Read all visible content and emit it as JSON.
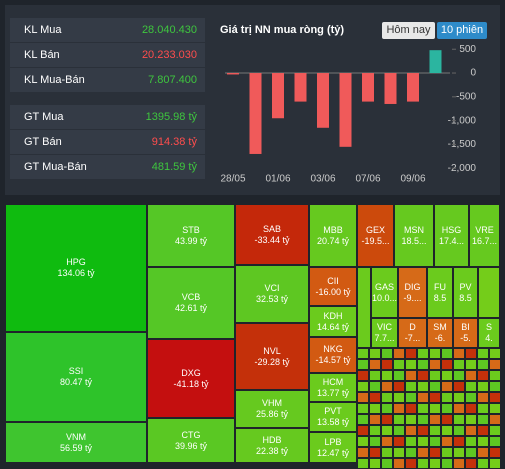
{
  "stats": [
    {
      "label": "KL Mua",
      "value": "28.040.430",
      "color": "#3ec53e"
    },
    {
      "label": "KL Bán",
      "value": "20.233.030",
      "color": "#ff4d4d"
    },
    {
      "label": "KL Mua-Bán",
      "value": "7.807.400",
      "color": "#3ec53e"
    },
    {
      "label": "GT Mua",
      "value": "1395.98 tỷ",
      "color": "#3ec53e"
    },
    {
      "label": "GT Bán",
      "value": "914.38 tỷ",
      "color": "#ff4d4d"
    },
    {
      "label": "GT Mua-Bán",
      "value": "481.59 tỷ",
      "color": "#3ec53e"
    }
  ],
  "chart": {
    "type": "bar",
    "title": "Giá trị NN mua ròng (tỷ)",
    "buttons": [
      "Hôm nay",
      "10 phiên"
    ],
    "categories": [
      "28/05",
      null,
      "01/06",
      null,
      "03/06",
      null,
      "07/06",
      null,
      "09/06",
      null
    ],
    "values": [
      -30,
      -1700,
      -950,
      -600,
      -1150,
      -1550,
      -600,
      -650,
      -600,
      480
    ],
    "positive_color": "#2bb5a0",
    "negative_color": "#f05a5a",
    "ylim": [
      -2100,
      700
    ],
    "yticks": [
      500,
      0,
      -500,
      {
        "value": -1000,
        "label": "-1,000"
      },
      {
        "value": -1500,
        "label": "-1,500"
      },
      {
        "value": -2000,
        "label": "-2,000"
      }
    ]
  },
  "treemap": [
    {
      "label": "HPG",
      "value": "134.06 tỷ",
      "color": "#0fbb0f"
    },
    {
      "label": "SSI",
      "value": "80.47 tỷ",
      "color": "#2ec32a"
    },
    {
      "label": "VNM",
      "value": "56.59 tỷ",
      "color": "#3fc52f"
    },
    {
      "label": "STB",
      "value": "43.99 tỷ",
      "color": "#55c726"
    },
    {
      "label": "VCB",
      "value": "42.61 tỷ",
      "color": "#55c726"
    },
    {
      "label": "DXG",
      "value": "-41.18 tỷ",
      "color": "#c40f0f"
    },
    {
      "label": "CTG",
      "value": "39.96 tỷ",
      "color": "#5ac823"
    },
    {
      "label": "SAB",
      "value": "-33.44 tỷ",
      "color": "#c4280a"
    },
    {
      "label": "VCI",
      "value": "32.53 tỷ",
      "color": "#5ec722"
    },
    {
      "label": "NVL",
      "value": "-29.28 tỷ",
      "color": "#c4300a"
    },
    {
      "label": "VHM",
      "value": "25.86 tỷ",
      "color": "#66c91f"
    },
    {
      "label": "HDB",
      "value": "22.38 tỷ",
      "color": "#66c91f"
    },
    {
      "label": "MBB",
      "value": "20.74 tỷ",
      "color": "#66c91f"
    },
    {
      "label": "GEX",
      "value": "-19.5...",
      "color": "#cc4a0c"
    },
    {
      "label": "CII",
      "value": "-16.00 tỷ",
      "color": "#d25a12"
    },
    {
      "label": "KDH",
      "value": "14.64 tỷ",
      "color": "#6bcb1d"
    },
    {
      "label": "NKG",
      "value": "-14.57 tỷ",
      "color": "#d25a12"
    },
    {
      "label": "HCM",
      "value": "13.77 tỷ",
      "color": "#6bcb1d"
    },
    {
      "label": "PVT",
      "value": "13.58 tỷ",
      "color": "#6bcb1d"
    },
    {
      "label": "LPB",
      "value": "12.47 tỷ",
      "color": "#6bcb1d"
    },
    {
      "label": "MSN",
      "value": "18.5...",
      "color": "#66c91f"
    },
    {
      "label": "HSG",
      "value": "17.4...",
      "color": "#66c91f"
    },
    {
      "label": "VRE",
      "value": "16.7...",
      "color": "#66c91f"
    },
    {
      "label": "GAS",
      "value": "10.0...",
      "color": "#6bcb1d"
    },
    {
      "label": "DIG",
      "value": "-9....",
      "color": "#d66a18"
    },
    {
      "label": "FU",
      "value": "8.5",
      "color": "#6bcb1d"
    },
    {
      "label": "PV",
      "value": "8.5",
      "color": "#6bcb1d"
    },
    {
      "label": "VIC",
      "value": "7.7...",
      "color": "#6bcb1d"
    },
    {
      "label": "D",
      "value": "-7...",
      "color": "#d66a18"
    },
    {
      "label": "SM",
      "value": "-6.",
      "color": "#d66a18"
    },
    {
      "label": "BI",
      "value": "-5.",
      "color": "#d66a18"
    },
    {
      "label": "S",
      "value": "4.",
      "color": "#6bcb1d"
    }
  ]
}
